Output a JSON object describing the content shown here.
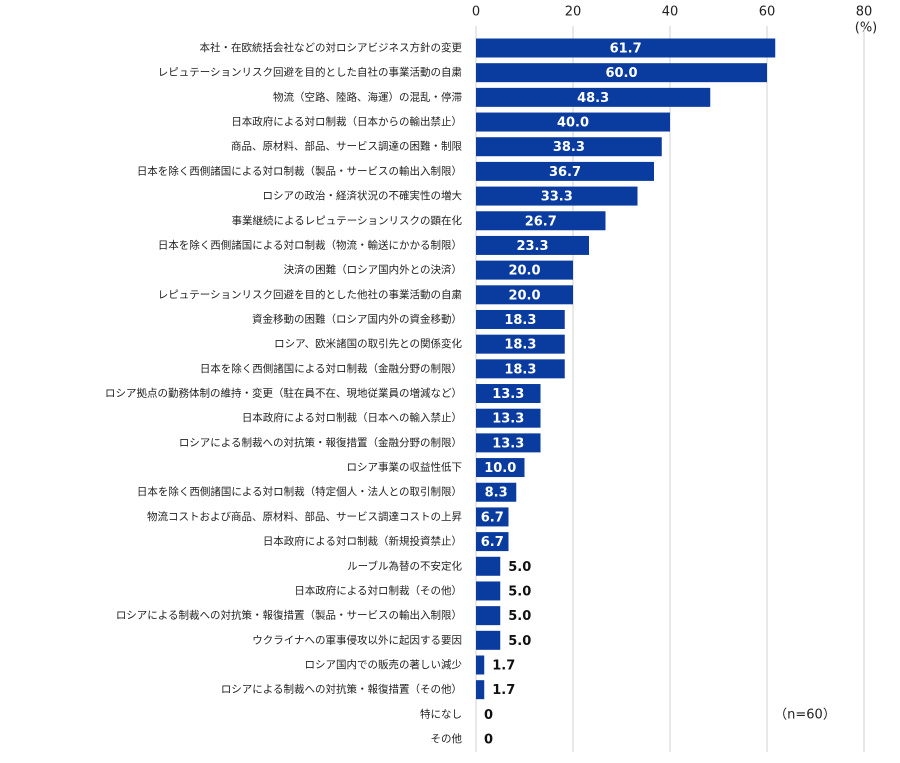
{
  "chart_data": {
    "type": "bar",
    "orientation": "horizontal",
    "unit_label": "(%)",
    "annotation": "（n=60）",
    "categories": [
      "本社・在欧統括会社などの対ロシアビジネス方針の変更",
      "レピュテーションリスク回避を目的とした自社の事業活動の自粛",
      "物流（空路、陸路、海運）の混乱・停滞",
      "日本政府による対ロ制裁（日本からの輸出禁止）",
      "商品、原材料、部品、サービス調達の困難・制限",
      "日本を除く西側諸国による対ロ制裁（製品・サービスの輸出入制限）",
      "ロシアの政治・経済状況の不確実性の増大",
      "事業継続によるレピュテーションリスクの顕在化",
      "日本を除く西側諸国による対ロ制裁（物流・輸送にかかる制限）",
      "決済の困難（ロシア国内外との決済）",
      "レピュテーションリスク回避を目的とした他社の事業活動の自粛",
      "資金移動の困難（ロシア国内外の資金移動）",
      "ロシア、欧米諸国の取引先との関係変化",
      "日本を除く西側諸国による対ロ制裁（金融分野の制限）",
      "ロシア拠点の勤務体制の維持・変更（駐在員不在、現地従業員の増減など）",
      "日本政府による対ロ制裁（日本への輸入禁止）",
      "ロシアによる制裁への対抗策・報復措置（金融分野の制限）",
      "ロシア事業の収益性低下",
      "日本を除く西側諸国による対ロ制裁（特定個人・法人との取引制限）",
      "物流コストおよび商品、原材料、部品、サービス調達コストの上昇",
      "日本政府による対ロ制裁（新規投資禁止）",
      "ルーブル為替の不安定化",
      "日本政府による対ロ制裁（その他）",
      "ロシアによる制裁への対抗策・報復措置（製品・サービスの輸出入制限）",
      "ウクライナへの軍事侵攻以外に起因する要因",
      "ロシア国内での販売の著しい減少",
      "ロシアによる制裁への対抗策・報復措置（その他）",
      "特になし",
      "その他"
    ],
    "values": [
      61.7,
      60,
      48.3,
      40,
      38.3,
      36.7,
      33.3,
      26.7,
      23.3,
      20,
      20,
      18.3,
      18.3,
      18.3,
      13.3,
      13.3,
      13.3,
      10,
      8.3,
      6.7,
      6.7,
      5,
      5,
      5,
      5,
      1.7,
      1.7,
      0,
      0
    ],
    "value_labels": [
      "61.7",
      "60.0",
      "48.3",
      "40.0",
      "38.3",
      "36.7",
      "33.3",
      "26.7",
      "23.3",
      "20.0",
      "20.0",
      "18.3",
      "18.3",
      "18.3",
      "13.3",
      "13.3",
      "13.3",
      "10.0",
      "8.3",
      "6.7",
      "6.7",
      "5.0",
      "5.0",
      "5.0",
      "5.0",
      "1.7",
      "1.7",
      "0",
      "0"
    ],
    "color": "#0a3ca0",
    "xlim": [
      0,
      80
    ],
    "xticks": [
      0,
      20,
      40,
      60,
      80
    ],
    "grid": true
  }
}
